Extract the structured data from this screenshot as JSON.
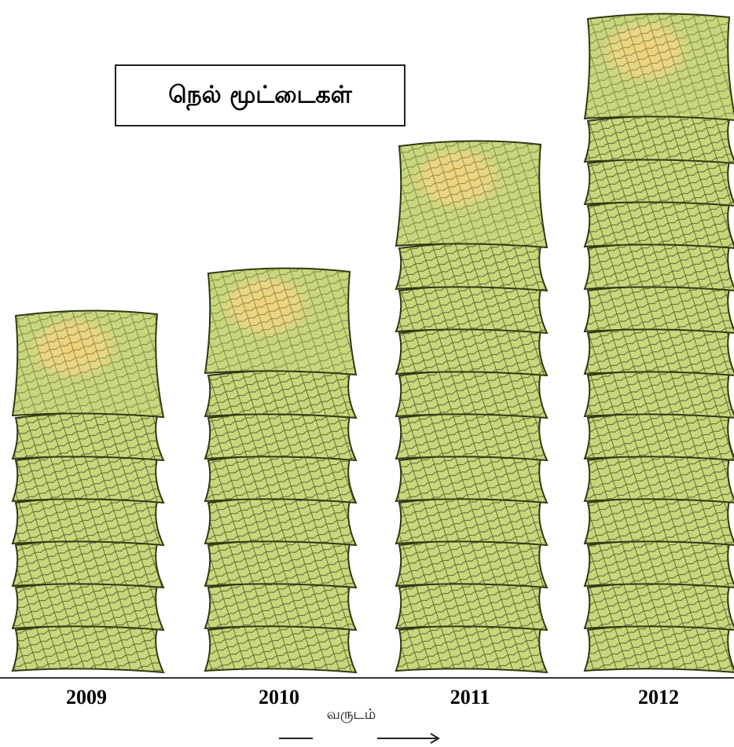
{
  "chart_data": {
    "type": "pictograph",
    "title": "நெல் மூட்டைகள்",
    "categories": [
      "2009",
      "2010",
      "2011",
      "2012"
    ],
    "values": [
      7,
      8,
      11,
      14
    ],
    "x_label": "வருடம்",
    "color": "#c9d67c"
  }
}
